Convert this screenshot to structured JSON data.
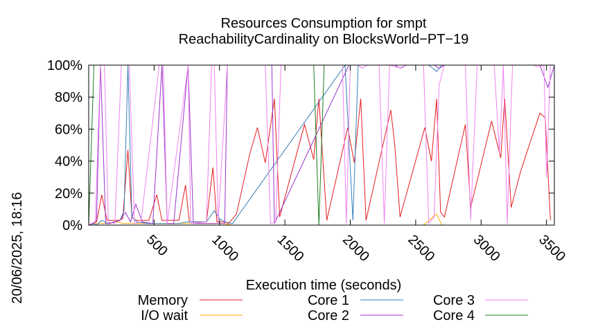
{
  "chart_data": {
    "type": "line",
    "title": "Resources Consumption for smpt",
    "subtitle": "ReachabilityCardinality on BlocksWorld−PT−19",
    "xlabel": "Execution time (seconds)",
    "ylabel": "",
    "side_label": "20/06/2025, 18:16",
    "xlim": [
      0,
      3560
    ],
    "ylim": [
      0,
      100
    ],
    "xticks": [
      500,
      1000,
      1500,
      2000,
      2500,
      3000,
      3500
    ],
    "xtick_labels": [
      "500",
      "1000",
      "1500",
      "2000",
      "2500",
      "3000",
      "3500"
    ],
    "yticks": [
      0,
      20,
      40,
      60,
      80,
      100
    ],
    "ytick_labels": [
      "0%",
      "20%",
      "40%",
      "60%",
      "80%",
      "100%"
    ],
    "grid": false,
    "legend_position": "bottom",
    "series": [
      {
        "name": "Memory",
        "color": "#e41a1c",
        "points": [
          [
            0,
            0
          ],
          [
            60,
            2
          ],
          [
            100,
            19
          ],
          [
            140,
            3
          ],
          [
            230,
            3
          ],
          [
            260,
            4
          ],
          [
            300,
            47
          ],
          [
            330,
            5
          ],
          [
            360,
            3
          ],
          [
            460,
            3
          ],
          [
            520,
            19
          ],
          [
            560,
            3
          ],
          [
            690,
            3
          ],
          [
            740,
            25
          ],
          [
            770,
            2
          ],
          [
            900,
            2
          ],
          [
            950,
            36
          ],
          [
            980,
            2
          ],
          [
            1040,
            2
          ],
          [
            1070,
            1
          ],
          [
            1130,
            7
          ],
          [
            1230,
            44
          ],
          [
            1290,
            61
          ],
          [
            1350,
            39
          ],
          [
            1420,
            79
          ],
          [
            1460,
            5
          ],
          [
            1650,
            63
          ],
          [
            1720,
            41
          ],
          [
            1760,
            79
          ],
          [
            1820,
            3
          ],
          [
            1980,
            61
          ],
          [
            2030,
            39
          ],
          [
            2080,
            79
          ],
          [
            2120,
            3
          ],
          [
            2310,
            72
          ],
          [
            2340,
            50
          ],
          [
            2380,
            5
          ],
          [
            2570,
            61
          ],
          [
            2620,
            40
          ],
          [
            2660,
            79
          ],
          [
            2690,
            8
          ],
          [
            2720,
            5
          ],
          [
            2880,
            63
          ],
          [
            2920,
            11
          ],
          [
            3080,
            65
          ],
          [
            3150,
            42
          ],
          [
            3180,
            79
          ],
          [
            3230,
            11
          ],
          [
            3300,
            33
          ],
          [
            3380,
            53
          ],
          [
            3450,
            70
          ],
          [
            3490,
            67
          ],
          [
            3530,
            3
          ]
        ]
      },
      {
        "name": "I/O wait",
        "color": "#ffa500",
        "points": [
          [
            0,
            0
          ],
          [
            50,
            1
          ],
          [
            160,
            1
          ],
          [
            220,
            2
          ],
          [
            270,
            1
          ],
          [
            420,
            1
          ],
          [
            700,
            1
          ],
          [
            1000,
            1
          ],
          [
            1030,
            1
          ],
          [
            1100,
            0
          ],
          [
            2560,
            0
          ],
          [
            2660,
            7
          ],
          [
            2700,
            0
          ],
          [
            3560,
            0
          ]
        ]
      },
      {
        "name": "Core 1",
        "color": "#377eb8",
        "points": [
          [
            0,
            0
          ],
          [
            40,
            1
          ],
          [
            60,
            0
          ],
          [
            100,
            3
          ],
          [
            150,
            1
          ],
          [
            190,
            2
          ],
          [
            240,
            3
          ],
          [
            270,
            9
          ],
          [
            300,
            100
          ],
          [
            330,
            5
          ],
          [
            370,
            2
          ],
          [
            450,
            1
          ],
          [
            500,
            1
          ],
          [
            690,
            1
          ],
          [
            750,
            2
          ],
          [
            900,
            2
          ],
          [
            960,
            9
          ],
          [
            1000,
            4
          ],
          [
            1040,
            2
          ],
          [
            1100,
            1
          ],
          [
            1960,
            100
          ],
          [
            2020,
            3
          ],
          [
            2060,
            100
          ],
          [
            2300,
            100
          ],
          [
            2340,
            100
          ],
          [
            2600,
            100
          ],
          [
            2660,
            96
          ],
          [
            2700,
            100
          ],
          [
            3560,
            100
          ]
        ]
      },
      {
        "name": "Core 2",
        "color": "#9932cc",
        "points": [
          [
            0,
            0
          ],
          [
            30,
            1
          ],
          [
            60,
            3
          ],
          [
            90,
            100
          ],
          [
            130,
            1
          ],
          [
            160,
            1
          ],
          [
            200,
            2
          ],
          [
            240,
            3
          ],
          [
            280,
            8
          ],
          [
            320,
            2
          ],
          [
            360,
            13
          ],
          [
            410,
            2
          ],
          [
            490,
            1
          ],
          [
            560,
            100
          ],
          [
            600,
            1
          ],
          [
            650,
            1
          ],
          [
            760,
            100
          ],
          [
            800,
            1
          ],
          [
            1040,
            1
          ],
          [
            1060,
            100
          ],
          [
            1400,
            100
          ],
          [
            1420,
            1
          ],
          [
            1990,
            100
          ],
          [
            2340,
            100
          ],
          [
            2380,
            98
          ],
          [
            2430,
            100
          ],
          [
            2640,
            100
          ],
          [
            2680,
            98
          ],
          [
            2720,
            100
          ],
          [
            3450,
            100
          ],
          [
            3510,
            86
          ],
          [
            3560,
            100
          ]
        ]
      },
      {
        "name": "Core 3",
        "color": "#ee82ee",
        "points": [
          [
            0,
            0
          ],
          [
            20,
            1
          ],
          [
            50,
            2
          ],
          [
            90,
            100
          ],
          [
            120,
            100
          ],
          [
            150,
            2
          ],
          [
            200,
            1
          ],
          [
            250,
            100
          ],
          [
            280,
            100
          ],
          [
            310,
            100
          ],
          [
            350,
            1
          ],
          [
            400,
            2
          ],
          [
            540,
            100
          ],
          [
            570,
            100
          ],
          [
            600,
            1
          ],
          [
            760,
            100
          ],
          [
            780,
            1
          ],
          [
            900,
            2
          ],
          [
            940,
            100
          ],
          [
            960,
            100
          ],
          [
            990,
            2
          ],
          [
            1060,
            100
          ],
          [
            1100,
            100
          ],
          [
            1350,
            100
          ],
          [
            1390,
            1
          ],
          [
            1430,
            2
          ],
          [
            1470,
            100
          ],
          [
            1940,
            100
          ],
          [
            1970,
            1
          ],
          [
            2000,
            100
          ],
          [
            2060,
            100
          ],
          [
            2090,
            98
          ],
          [
            2130,
            100
          ],
          [
            2220,
            100
          ],
          [
            2260,
            1
          ],
          [
            2300,
            100
          ],
          [
            2390,
            98
          ],
          [
            2430,
            100
          ],
          [
            2560,
            100
          ],
          [
            2600,
            1
          ],
          [
            2640,
            5
          ],
          [
            2680,
            88
          ],
          [
            2720,
            100
          ],
          [
            2880,
            100
          ],
          [
            2920,
            3
          ],
          [
            2970,
            100
          ],
          [
            3100,
            100
          ],
          [
            3140,
            45
          ],
          [
            3170,
            100
          ],
          [
            3200,
            1
          ],
          [
            3240,
            100
          ],
          [
            3400,
            100
          ],
          [
            3430,
            99
          ],
          [
            3480,
            100
          ],
          [
            3500,
            30
          ],
          [
            3530,
            100
          ],
          [
            3560,
            100
          ]
        ]
      },
      {
        "name": "Core 4",
        "color": "#1a7a1a",
        "points": [
          [
            0,
            0
          ],
          [
            40,
            100
          ],
          [
            300,
            100
          ],
          [
            330,
            100
          ],
          [
            1720,
            100
          ],
          [
            1760,
            0
          ],
          [
            1800,
            100
          ],
          [
            3560,
            100
          ]
        ]
      }
    ]
  }
}
